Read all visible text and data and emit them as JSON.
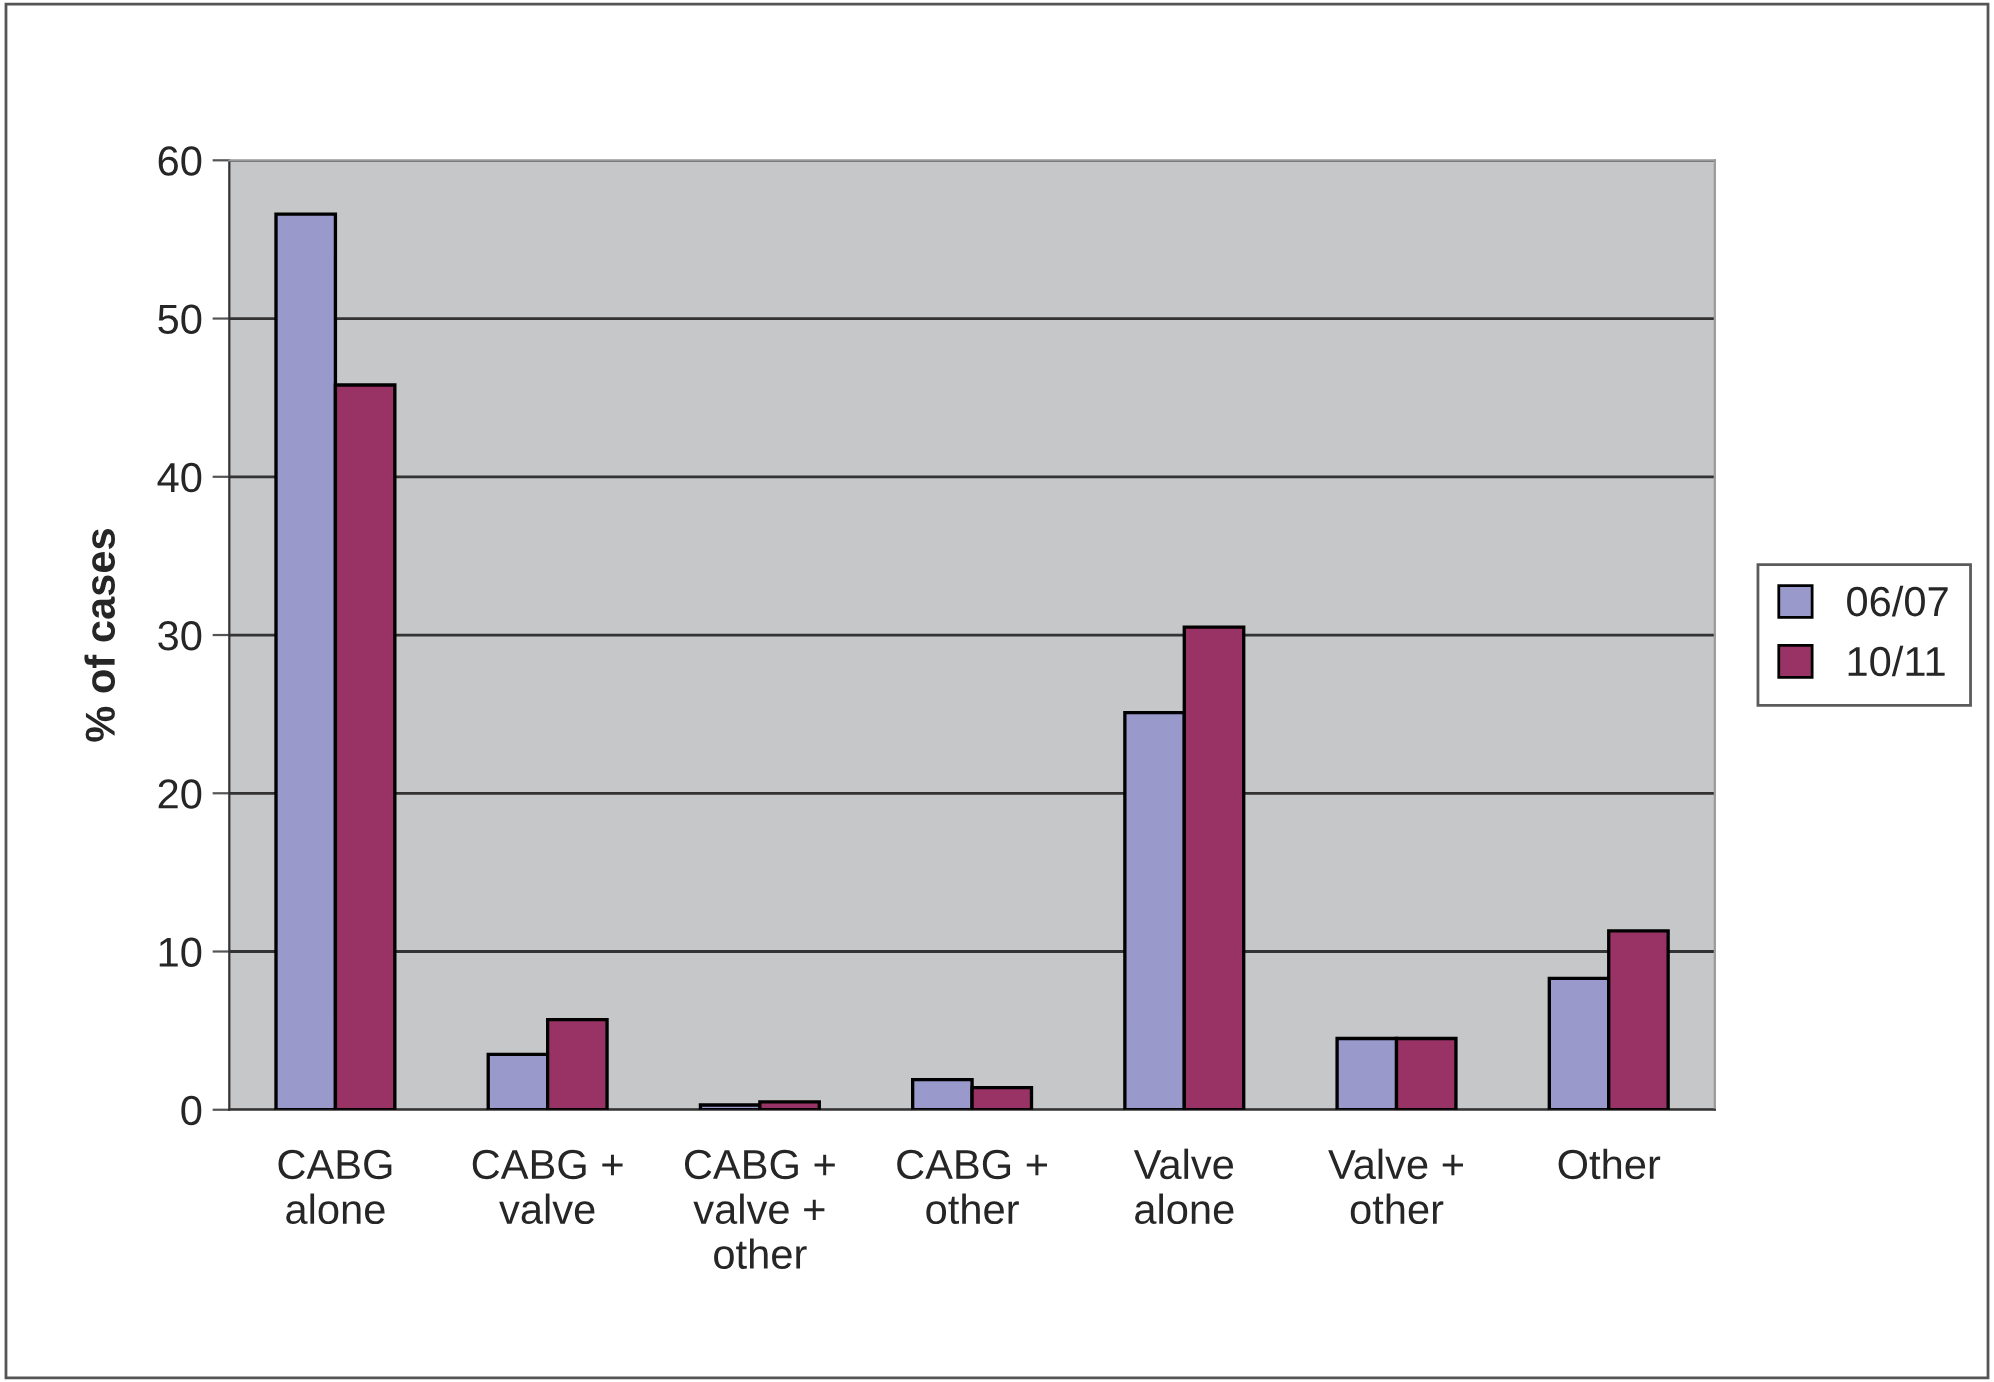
{
  "chart_data": {
    "type": "bar",
    "ylabel": "% of cases",
    "categories": [
      "CABG\nalone",
      "CABG +\nvalve",
      "CABG +\nvalve +\nother",
      "CABG +\nother",
      "Valve\nalone",
      "Valve +\nother",
      "Other"
    ],
    "series": [
      {
        "name": "06/07",
        "color": "#9999cc",
        "values": [
          56.6,
          3.5,
          0.3,
          1.9,
          25.1,
          4.5,
          8.3
        ]
      },
      {
        "name": "10/11",
        "color": "#993366",
        "values": [
          45.8,
          5.7,
          0.5,
          1.4,
          30.5,
          4.5,
          11.3
        ]
      }
    ],
    "ylim": [
      0,
      60
    ],
    "yticks": [
      0,
      10,
      20,
      30,
      40,
      50,
      60
    ],
    "grid": "y",
    "legend": "right"
  }
}
